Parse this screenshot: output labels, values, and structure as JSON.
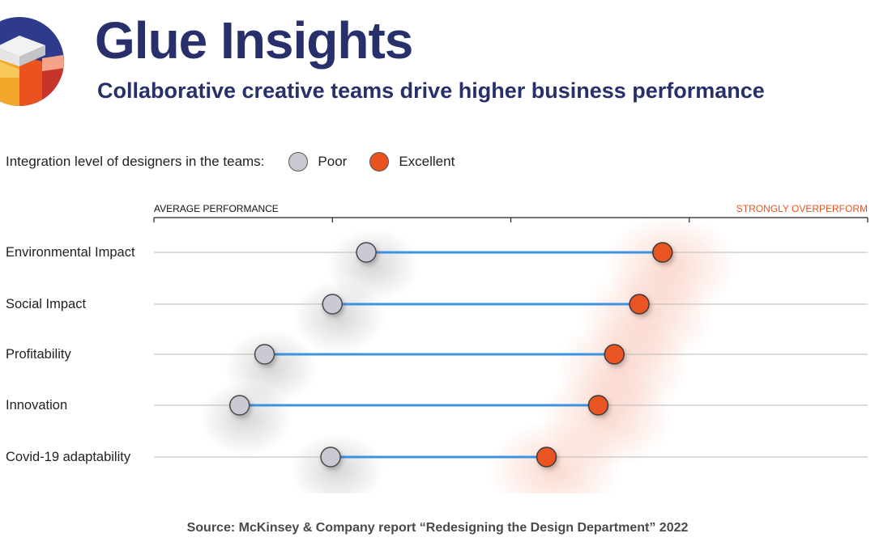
{
  "brand": {
    "title": "Glue Insights",
    "subtitle": "Collaborative creative teams drive higher business performance",
    "title_color": "#27306b"
  },
  "legend": {
    "title": "Integration level of designers in the teams:",
    "items": [
      {
        "label": "Poor",
        "color": "#c9cad3"
      },
      {
        "label": "Excellent",
        "color": "#ea5220"
      }
    ]
  },
  "chart_data": {
    "type": "dumbbell",
    "axis_labels": {
      "left": "AVERAGE PERFORMANCE",
      "right": "STRONGLY OVERPERFORM",
      "right_color": "#ea5220"
    },
    "x_range": [
      0,
      4
    ],
    "x_ticks": [
      0,
      1,
      2,
      3,
      4
    ],
    "categories": [
      "Environmental Impact",
      "Social Impact",
      "Profitability",
      "Innovation",
      "Covid-19 adaptability"
    ],
    "series": [
      {
        "name": "Poor",
        "color": "#c9cad3",
        "values": [
          1.19,
          1.0,
          0.62,
          0.48,
          0.99
        ]
      },
      {
        "name": "Excellent",
        "color": "#ea5220",
        "values": [
          2.85,
          2.72,
          2.58,
          2.49,
          2.2
        ]
      }
    ],
    "connector_color": "#3d93e0",
    "grid": true
  },
  "source": "Source: McKinsey & Company report “Redesigning the Design Department” 2022"
}
